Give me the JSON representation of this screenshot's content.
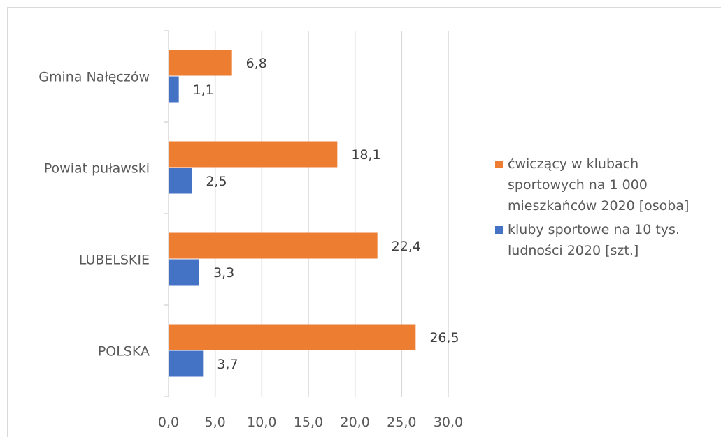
{
  "chart_data": {
    "type": "bar",
    "orientation": "horizontal",
    "categories": [
      "Gmina Nałęczów",
      "Powiat puławski",
      "LUBELSKIE",
      "POLSKA"
    ],
    "series": [
      {
        "name": "ćwiczący w klubach sportowych na 1 000 mieszkańców 2020 [osoba]",
        "color": "#ED7D31",
        "values": [
          6.8,
          18.1,
          22.4,
          26.5
        ],
        "labels": [
          "6,8",
          "18,1",
          "22,4",
          "26,5"
        ]
      },
      {
        "name": "kluby sportowe na 10 tys. ludności 2020 [szt.]",
        "color": "#4472C4",
        "values": [
          1.1,
          2.5,
          3.3,
          3.7
        ],
        "labels": [
          "1,1",
          "2,5",
          "3,3",
          "3,7"
        ]
      }
    ],
    "xlim": [
      0,
      30
    ],
    "xticks": [
      0,
      5,
      10,
      15,
      20,
      25,
      30
    ],
    "xtick_labels": [
      "0,0",
      "5,0",
      "10,0",
      "15,0",
      "20,0",
      "25,0",
      "30,0"
    ],
    "grid": true,
    "legend_position": "right"
  }
}
